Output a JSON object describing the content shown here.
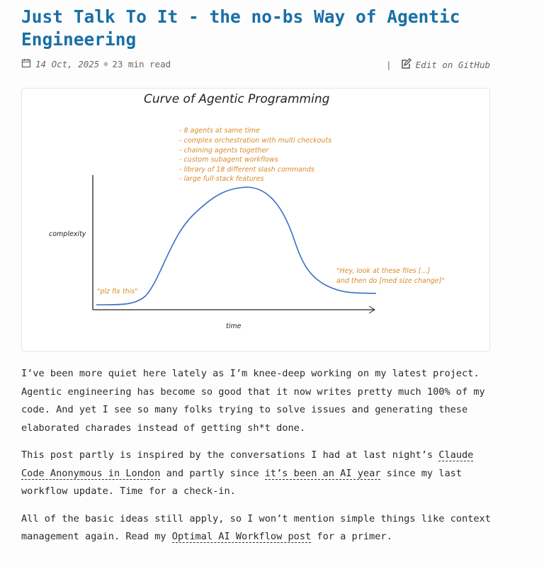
{
  "post": {
    "title": "Just Talk To It - the no-bs Way of Agentic Engineering",
    "date": "14 Oct, 2025",
    "read_time": "23 min read",
    "edit_label": "Edit on GitHub"
  },
  "figure": {
    "title": "Curve of Agentic Programming",
    "ylabel": "complexity",
    "xlabel": "time",
    "peak_notes": [
      "- 8 agents at same time",
      "- complex orchestration with multi checkouts",
      "- chaining agents together",
      "- custom subagent workflows",
      "- library of 18 different slash commands",
      "- large full-stack features"
    ],
    "start_note": "\"plz fix this\"",
    "end_note": [
      "\"Hey, look at these files [...]",
      "and then do [med size change]\""
    ],
    "colors": {
      "curve": "#3a6fc4",
      "notes": "#d98a2b"
    }
  },
  "paragraphs": {
    "p1": "I’ve been more quiet here lately as I’m knee-deep working on my latest project. Agentic engineering has become so good that it now writes pretty much 100% of my code. And yet I see so many folks trying to solve issues and generating these elaborated charades instead of getting sh*t done.",
    "p2_a": "This post partly is inspired by the conversations I had at last night’s ",
    "p2_link1": "Claude Code Anonymous in London",
    "p2_b": " and partly since ",
    "p2_link2": "it’s been an AI year",
    "p2_c": " since my last workflow update. Time for a check-in.",
    "p3_a": "All of the basic ideas still apply, so I won’t mention simple things like context management again. Read my ",
    "p3_link": "Optimal AI Workflow post",
    "p3_b": " for a primer."
  }
}
